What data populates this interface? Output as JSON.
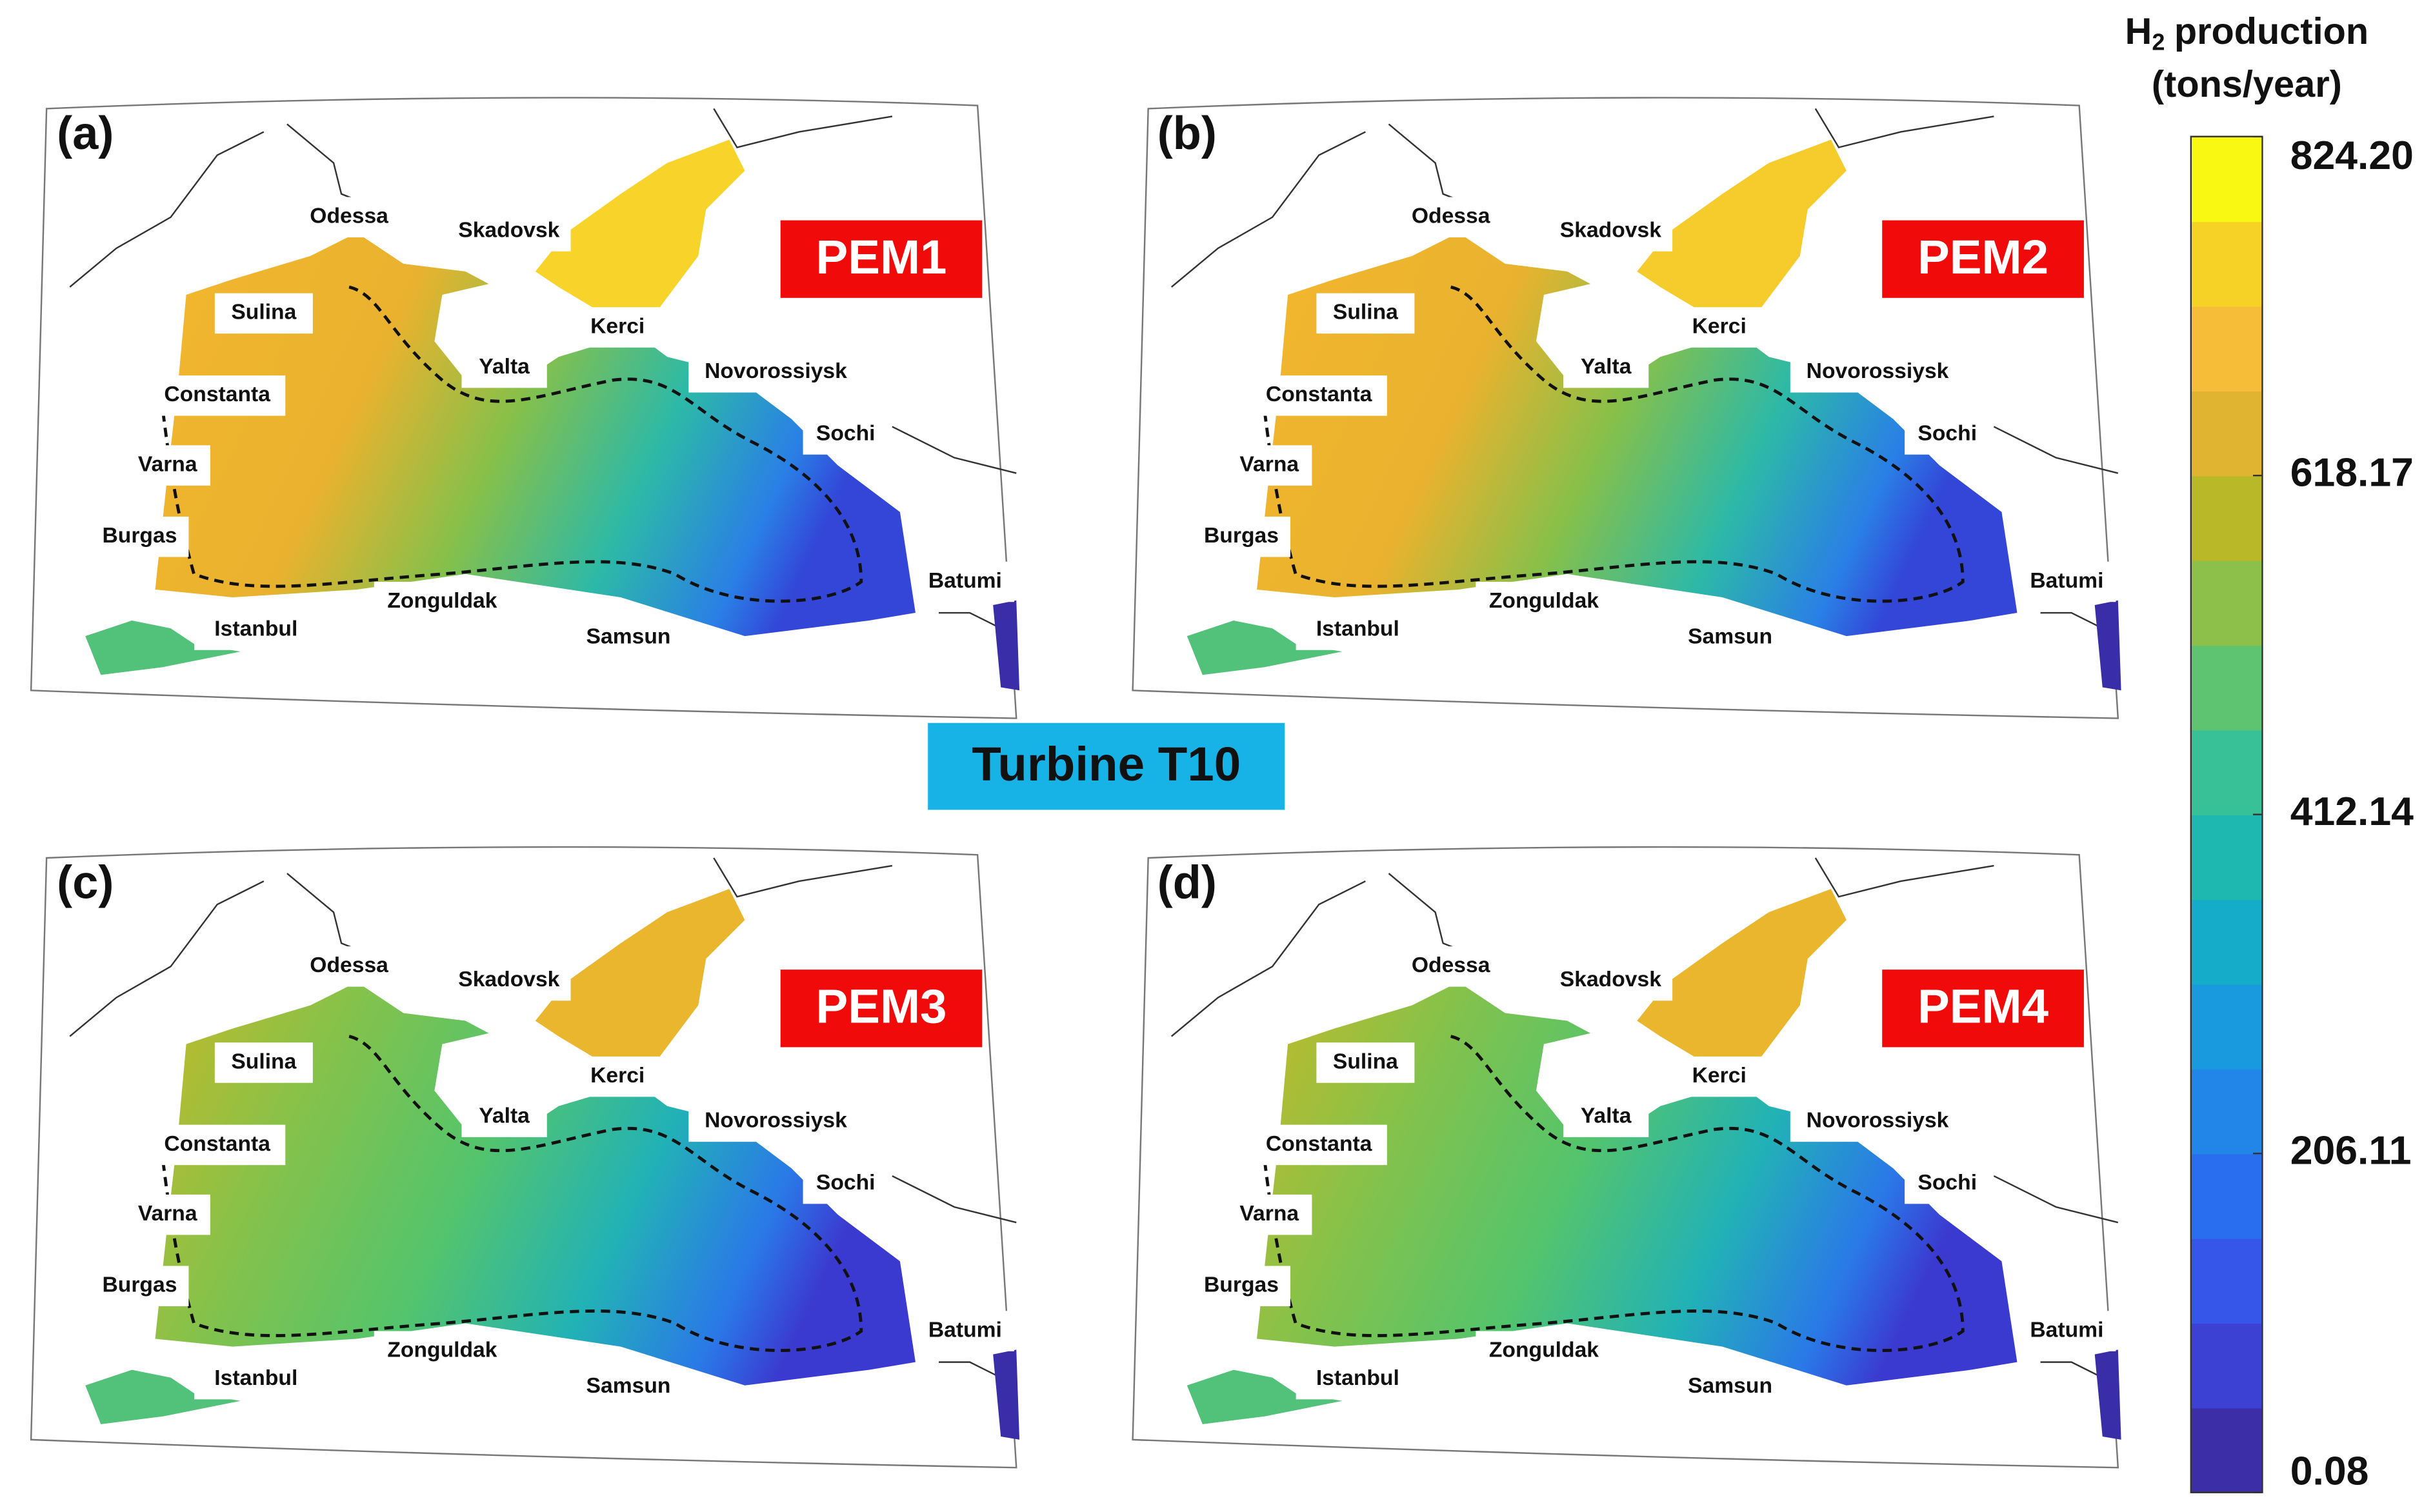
{
  "center_label": "Turbine T10",
  "cities": [
    "Odessa",
    "Skadovsk",
    "Sulina",
    "Kerci",
    "Yalta",
    "Constanta",
    "Novorossiysk",
    "Sochi",
    "Varna",
    "Burgas",
    "Batumi",
    "Istanbul",
    "Zonguldak",
    "Samsun"
  ],
  "panels": [
    {
      "letter": "(a)",
      "label": "PEM1"
    },
    {
      "letter": "(b)",
      "label": "PEM2"
    },
    {
      "letter": "(c)",
      "label": "PEM3"
    },
    {
      "letter": "(d)",
      "label": "PEM4"
    }
  ],
  "colorbar": {
    "title": {
      "symbol": "H",
      "subscript": "2",
      "text": "production",
      "unit": "(tons/year)"
    },
    "lim": [
      0.08,
      824.2
    ],
    "ticks": [
      0.08,
      206.11,
      412.14,
      618.17,
      {
        "value": 824.2,
        "label": "824.20"
      }
    ]
  }
}
